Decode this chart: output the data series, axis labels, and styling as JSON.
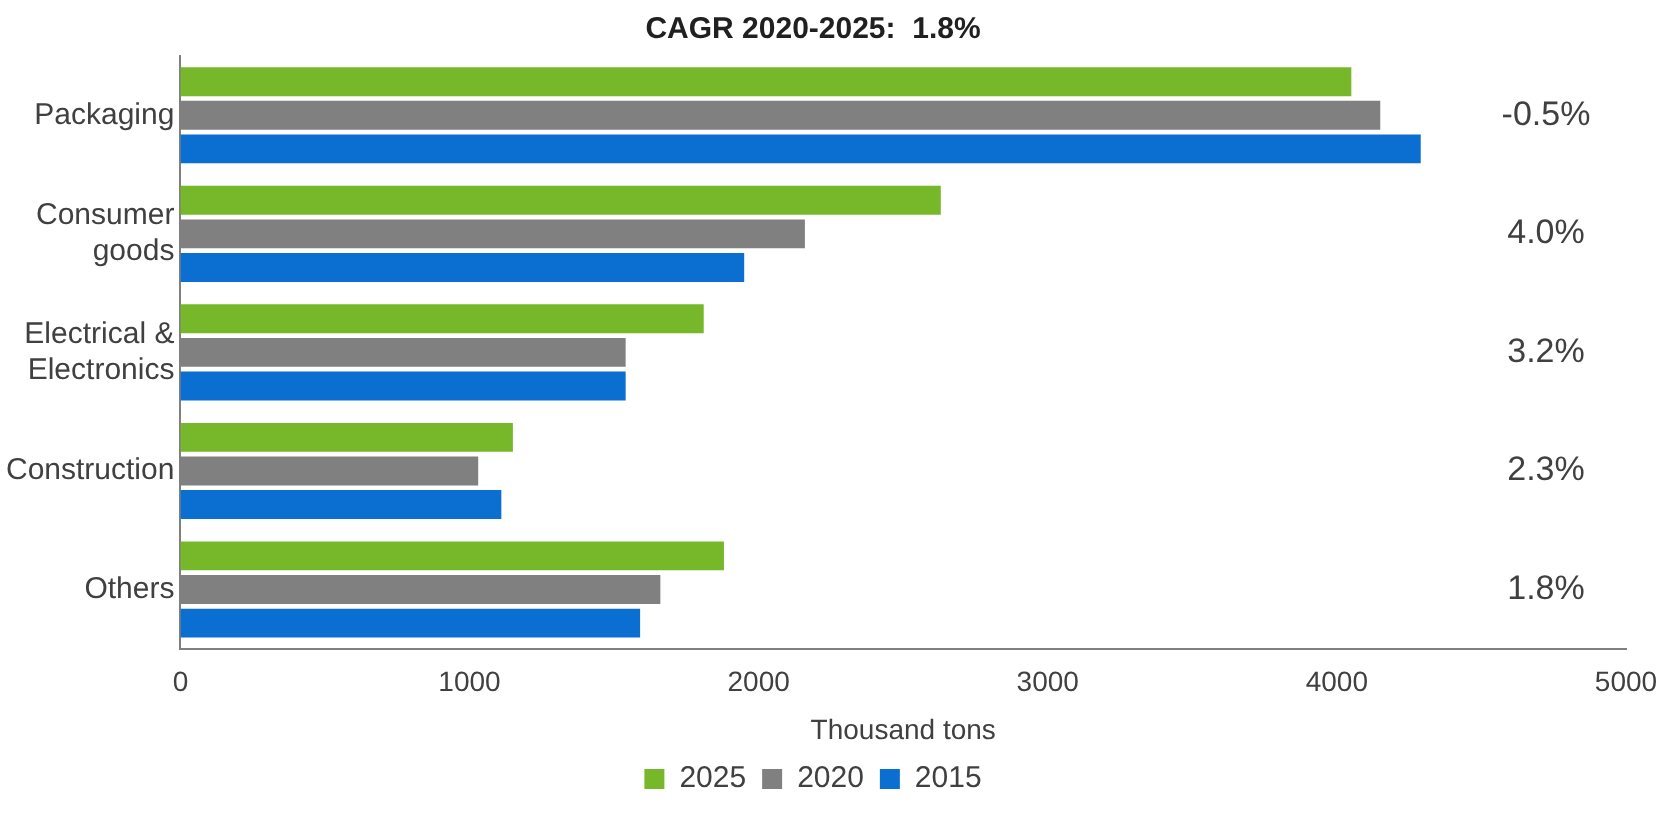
{
  "chart_data": {
    "type": "bar",
    "orientation": "horizontal",
    "title": "CAGR 2020-2025:  1.8%",
    "xlabel": "Thousand tons",
    "categories": [
      "Packaging",
      "Consumer goods",
      "Electrical & Electronics",
      "Construction",
      "Others"
    ],
    "series": [
      {
        "name": "2025",
        "color": "#76b82a",
        "values": [
          4050,
          2630,
          1810,
          1150,
          1880
        ]
      },
      {
        "name": "2020",
        "color": "#808080",
        "values": [
          4150,
          2160,
          1540,
          1030,
          1660
        ]
      },
      {
        "name": "2015",
        "color": "#0a6fd0",
        "values": [
          4290,
          1950,
          1540,
          1110,
          1590
        ]
      }
    ],
    "xlim": [
      0,
      5000
    ],
    "xticks": [
      0,
      1000,
      2000,
      3000,
      4000,
      5000
    ],
    "grid": false,
    "legend": "bottom",
    "annotations": [
      "-0.5%",
      "4.0%",
      "3.2%",
      "2.3%",
      "1.8%"
    ]
  }
}
